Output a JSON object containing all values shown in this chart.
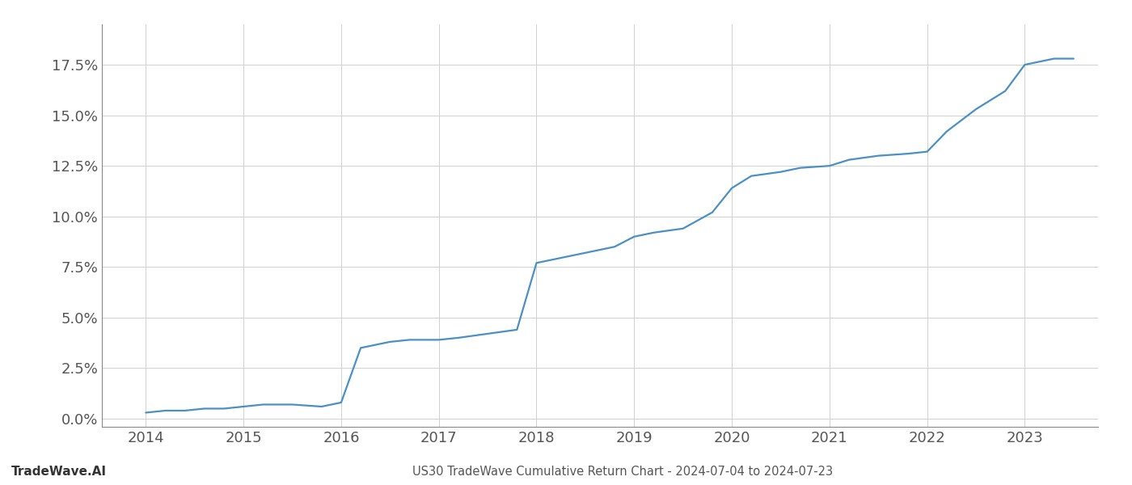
{
  "title": "US30 TradeWave Cumulative Return Chart - 2024-07-04 to 2024-07-23",
  "watermark": "TradeWave.AI",
  "line_color": "#4a90c4",
  "background_color": "#ffffff",
  "grid_color": "#d0d0d0",
  "x_values": [
    2014.0,
    2014.2,
    2014.4,
    2014.6,
    2014.8,
    2015.0,
    2015.2,
    2015.5,
    2015.8,
    2016.0,
    2016.2,
    2016.5,
    2016.7,
    2017.0,
    2017.2,
    2017.5,
    2017.8,
    2018.0,
    2018.2,
    2018.4,
    2018.6,
    2018.8,
    2019.0,
    2019.2,
    2019.5,
    2019.8,
    2020.0,
    2020.2,
    2020.5,
    2020.7,
    2021.0,
    2021.2,
    2021.5,
    2021.8,
    2022.0,
    2022.2,
    2022.5,
    2022.8,
    2023.0,
    2023.3,
    2023.5
  ],
  "y_values": [
    0.003,
    0.004,
    0.004,
    0.005,
    0.005,
    0.006,
    0.007,
    0.007,
    0.006,
    0.008,
    0.035,
    0.038,
    0.039,
    0.039,
    0.04,
    0.042,
    0.044,
    0.077,
    0.079,
    0.081,
    0.083,
    0.085,
    0.09,
    0.092,
    0.094,
    0.102,
    0.114,
    0.12,
    0.122,
    0.124,
    0.125,
    0.128,
    0.13,
    0.131,
    0.132,
    0.142,
    0.153,
    0.162,
    0.175,
    0.178,
    0.178
  ],
  "xlim": [
    2013.55,
    2023.75
  ],
  "ylim": [
    -0.004,
    0.195
  ],
  "yticks": [
    0.0,
    0.025,
    0.05,
    0.075,
    0.1,
    0.125,
    0.15,
    0.175
  ],
  "xticks": [
    2014,
    2015,
    2016,
    2017,
    2018,
    2019,
    2020,
    2021,
    2022,
    2023
  ],
  "line_width": 1.6,
  "title_fontsize": 10.5,
  "tick_fontsize": 13,
  "watermark_fontsize": 11
}
